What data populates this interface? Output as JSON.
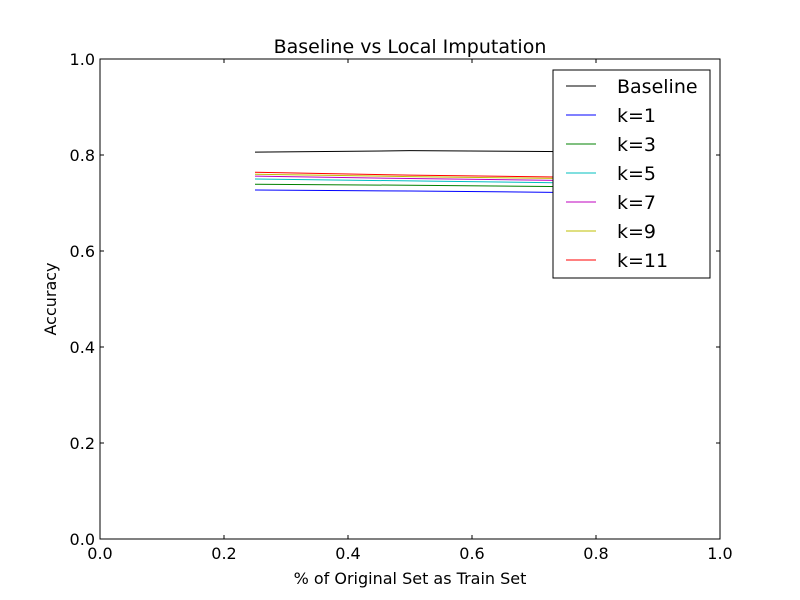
{
  "chart_data": {
    "type": "line",
    "title": "Baseline vs Local Imputation",
    "xlabel": "% of Original Set as Train Set",
    "ylabel": "Accuracy",
    "xlim": [
      0.0,
      1.0
    ],
    "ylim": [
      0.0,
      1.0
    ],
    "x_ticks": [
      "0.0",
      "0.2",
      "0.4",
      "0.6",
      "0.8",
      "1.0"
    ],
    "y_ticks": [
      "0.0",
      "0.2",
      "0.4",
      "0.6",
      "0.8",
      "1.0"
    ],
    "grid": false,
    "legend_position": "top-right",
    "x": [
      0.25,
      0.5,
      0.75
    ],
    "series": [
      {
        "name": "Baseline",
        "color": "#000000",
        "values": [
          0.806,
          0.809,
          0.807
        ]
      },
      {
        "name": "k=1",
        "color": "#0000ff",
        "values": [
          0.727,
          0.725,
          0.722
        ]
      },
      {
        "name": "k=3",
        "color": "#008000",
        "values": [
          0.739,
          0.737,
          0.734
        ]
      },
      {
        "name": "k=5",
        "color": "#00bfbf",
        "values": [
          0.75,
          0.746,
          0.742
        ]
      },
      {
        "name": "k=7",
        "color": "#bf00bf",
        "values": [
          0.756,
          0.751,
          0.747
        ]
      },
      {
        "name": "k=9",
        "color": "#bfbf00",
        "values": [
          0.76,
          0.755,
          0.751
        ]
      },
      {
        "name": "k=11",
        "color": "#ff0000",
        "values": [
          0.764,
          0.758,
          0.754
        ]
      }
    ]
  }
}
